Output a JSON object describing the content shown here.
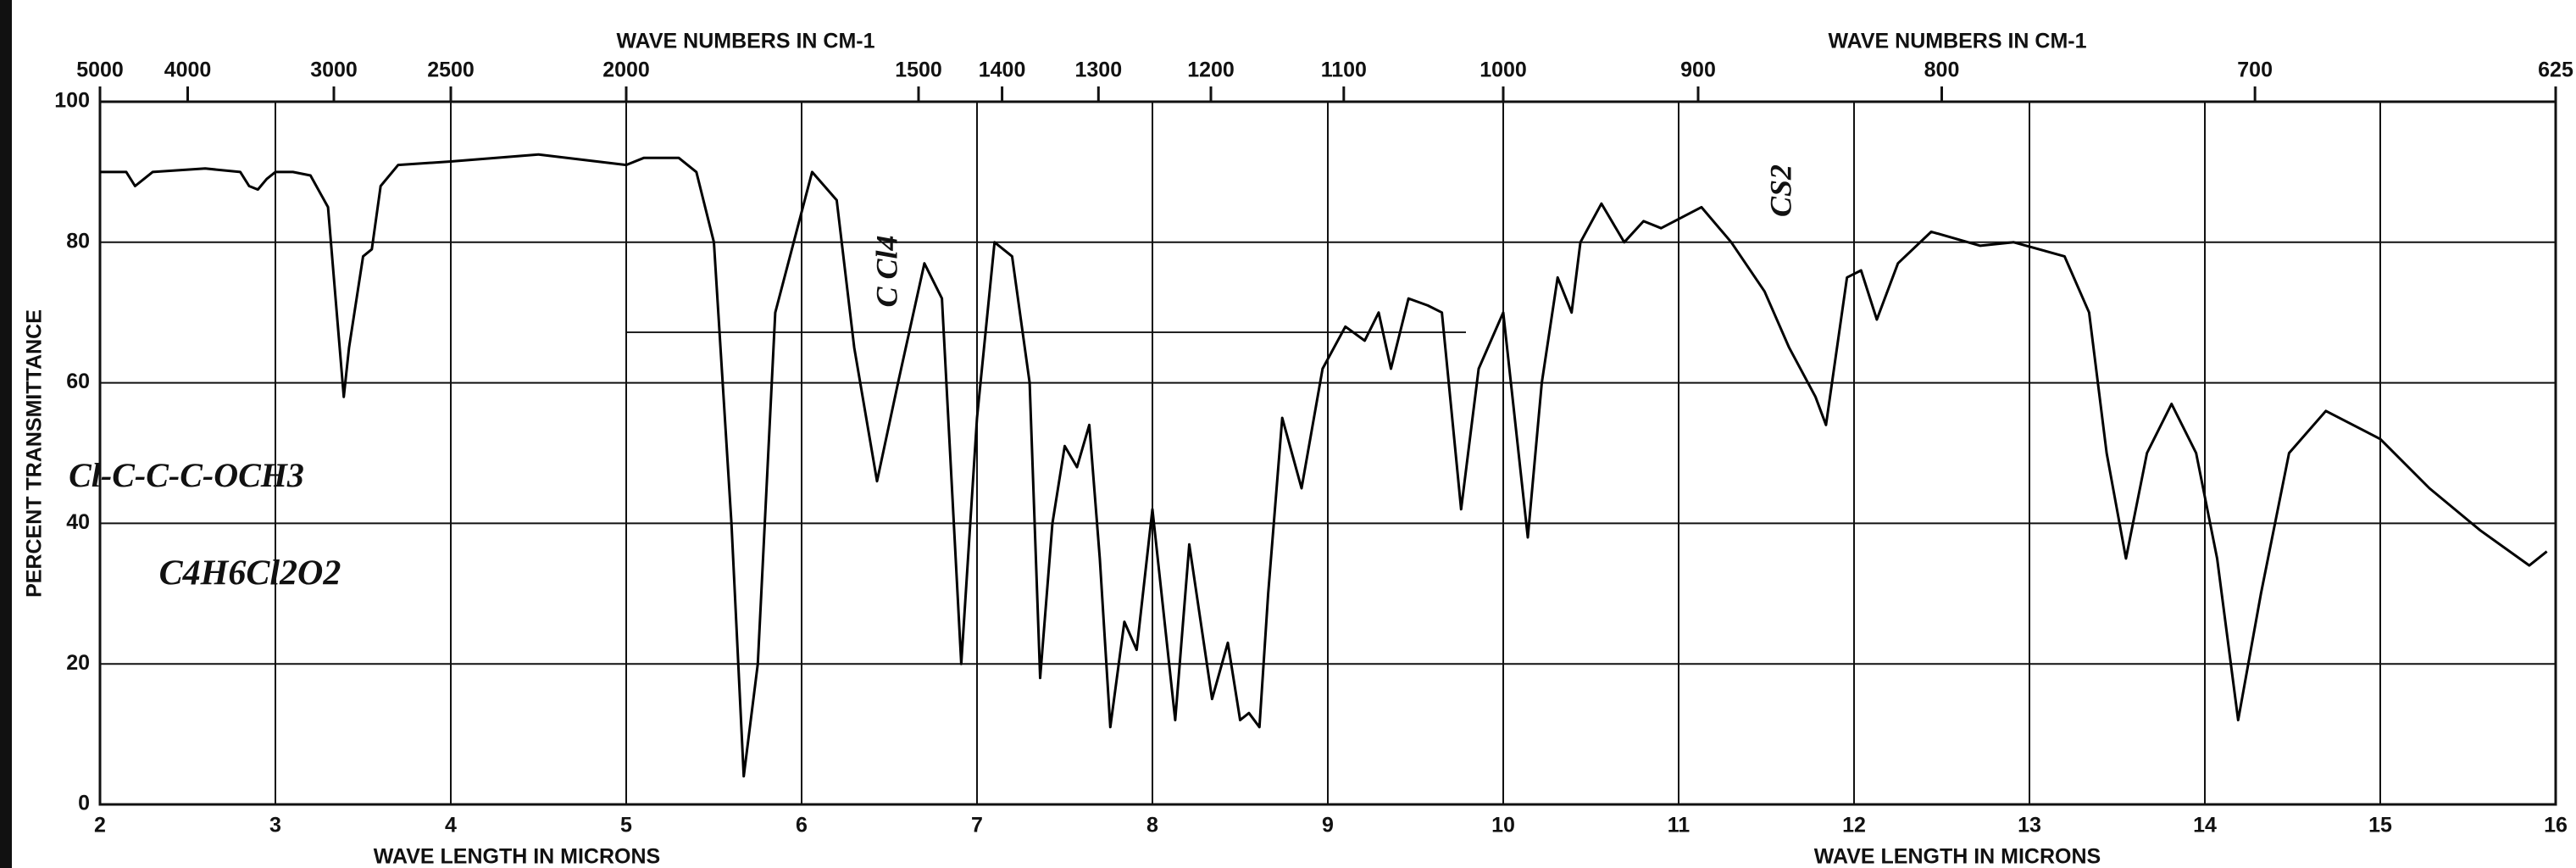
{
  "chart_data": {
    "type": "line",
    "xlabel": "WAVE LENGTH IN MICRONS",
    "ylabel": "PERCENT TRANSMITTANCE",
    "x2label": "WAVE NUMBERS IN CM-1",
    "xlim": [
      2,
      16
    ],
    "xticks": [
      2,
      3,
      4,
      5,
      6,
      7,
      8,
      9,
      10,
      11,
      12,
      13,
      14,
      15,
      16
    ],
    "ylim": [
      0,
      100
    ],
    "yticks": [
      0,
      20,
      40,
      60,
      80,
      100
    ],
    "x2ticks": [
      5000,
      4000,
      3000,
      2500,
      2000,
      1500,
      1400,
      1300,
      1200,
      1100,
      1000,
      900,
      800,
      700,
      625
    ],
    "grid": true,
    "color": "#000000",
    "annotations": [
      "C Cl4",
      "CS2",
      "Cl-C-C-C-OCH3",
      "C4H6Cl2O2"
    ],
    "x": [
      2.0,
      2.15,
      2.2,
      2.25,
      2.3,
      2.6,
      2.8,
      2.85,
      2.9,
      2.95,
      3.0,
      3.1,
      3.2,
      3.3,
      3.35,
      3.39,
      3.42,
      3.5,
      3.55,
      3.6,
      3.7,
      4.0,
      4.5,
      5.0,
      5.1,
      5.3,
      5.4,
      5.5,
      5.6,
      5.67,
      5.75,
      5.85,
      6.06,
      6.2,
      6.3,
      6.43,
      6.55,
      6.7,
      6.8,
      6.91,
      7.0,
      7.1,
      7.2,
      7.3,
      7.36,
      7.43,
      7.5,
      7.57,
      7.64,
      7.7,
      7.76,
      7.84,
      7.91,
      8.0,
      8.13,
      8.21,
      8.34,
      8.43,
      8.5,
      8.55,
      8.61,
      8.66,
      8.74,
      8.85,
      8.97,
      9.1,
      9.21,
      9.29,
      9.36,
      9.46,
      9.57,
      9.65,
      9.76,
      9.86,
      10.0,
      10.14,
      10.22,
      10.31,
      10.39,
      10.44,
      10.56,
      10.69,
      10.8,
      10.9,
      11.13,
      11.3,
      11.49,
      11.63,
      11.78,
      11.84,
      11.96,
      12.04,
      12.13,
      12.25,
      12.44,
      12.72,
      12.91,
      13.2,
      13.34,
      13.44,
      13.55,
      13.67,
      13.81,
      13.95,
      14.07,
      14.19,
      14.32,
      14.48,
      14.69,
      15.0,
      15.28,
      15.57,
      15.85,
      15.95
    ],
    "values": [
      90,
      90,
      88,
      89,
      90,
      90.5,
      90,
      88,
      87.5,
      89,
      90,
      90,
      89.5,
      85,
      70,
      58,
      65,
      78,
      79,
      88,
      91,
      91.5,
      92.5,
      91,
      92,
      92,
      90,
      80,
      40,
      4,
      20,
      70,
      90,
      86,
      65,
      46,
      60,
      77,
      72,
      20,
      55,
      80,
      78,
      60,
      18,
      40,
      51,
      48,
      54,
      35,
      11,
      26,
      22,
      42,
      12,
      37,
      15,
      23,
      12,
      13,
      11,
      30,
      55,
      45,
      62,
      68,
      66,
      70,
      62,
      72,
      71,
      70,
      42,
      62,
      70,
      38,
      60,
      75,
      70,
      80,
      85.5,
      80,
      83,
      82,
      85,
      80,
      73,
      65,
      58,
      54,
      75,
      76,
      69,
      77,
      81.5,
      79.5,
      80,
      78,
      70,
      50,
      35,
      50,
      57,
      50,
      35,
      12,
      30,
      50,
      56,
      52,
      45,
      39,
      34,
      36
    ]
  }
}
